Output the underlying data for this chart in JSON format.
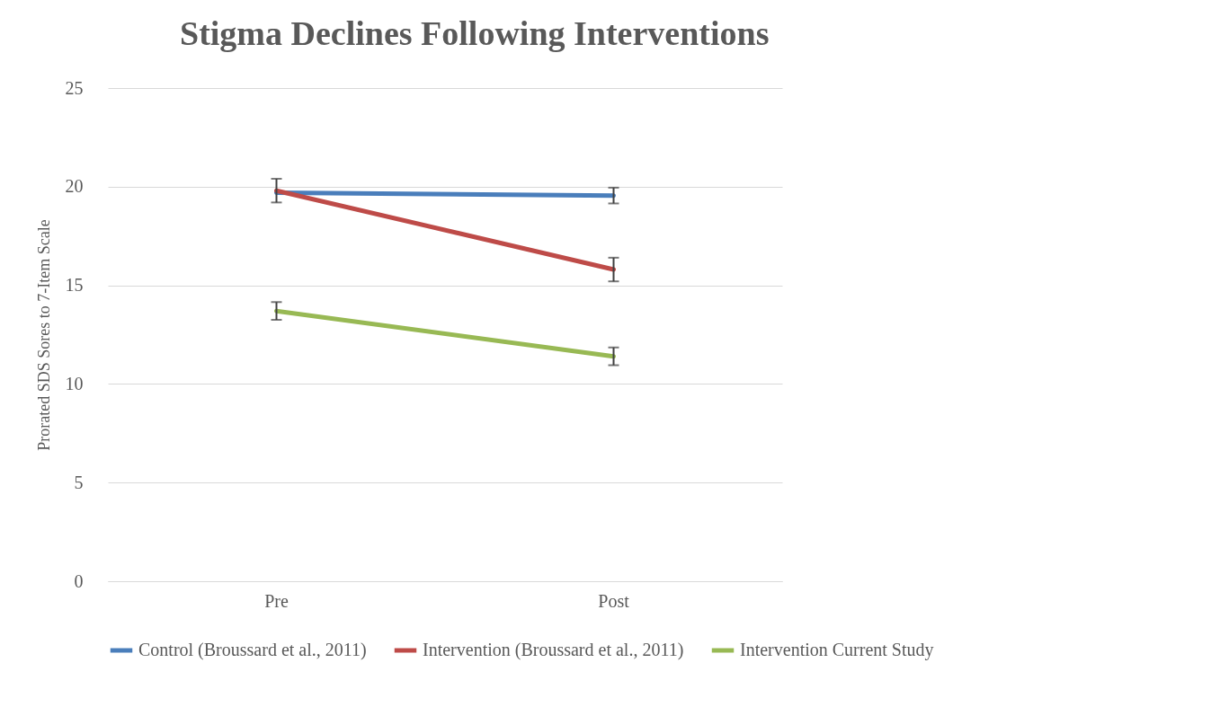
{
  "chart_data": {
    "type": "line",
    "title": "Stigma Declines Following  Interventions",
    "ylabel": "Prorated SDS Sores to 7-Item Scale",
    "categories": [
      "Pre",
      "Post"
    ],
    "series": [
      {
        "name": "Control (Broussard et al., 2011)",
        "color": "#4a7ebb",
        "values": [
          19.7,
          19.55
        ],
        "errors": [
          [
            19.2,
            20.4
          ],
          0.4
        ]
      },
      {
        "name": "Intervention (Broussard et al., 2011)",
        "color": "#be4b48",
        "values": [
          19.8,
          15.8
        ],
        "errors": [
          null,
          0.6
        ]
      },
      {
        "name": "Intervention Current Study",
        "color": "#98b954",
        "values": [
          13.7,
          11.4
        ],
        "errors": [
          0.45,
          0.45
        ]
      }
    ],
    "ylim": [
      0,
      25
    ],
    "yticks": [
      0,
      5,
      10,
      15,
      20,
      25
    ],
    "grid": "y",
    "legend": "bottom",
    "marker": "none",
    "line_style": "solid"
  }
}
